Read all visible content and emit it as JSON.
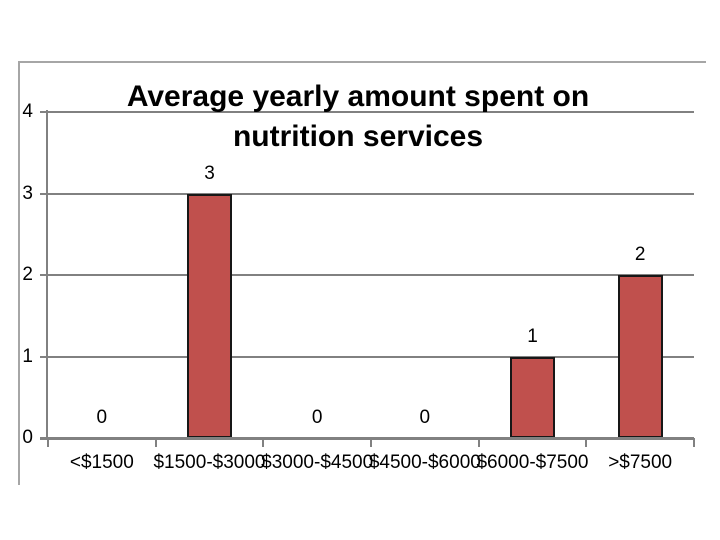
{
  "slide": {
    "title_line1": "Average yearly amount spent on",
    "title_line2": "nutrition services"
  },
  "chart_data": {
    "type": "bar",
    "title": "Average yearly amount spent on nutrition services",
    "title_lines": [
      "Average yearly amount spent on",
      "nutrition services"
    ],
    "categories": [
      "<$1500",
      "$1500-$3000",
      "$3000-$4500",
      "$4500-$6000",
      "$6000-$7500",
      ">$7500"
    ],
    "values": [
      0,
      3,
      0,
      0,
      1,
      2
    ],
    "data_labels": [
      "0",
      "3",
      "0",
      "0",
      "1",
      "2"
    ],
    "xlabel": "",
    "ylabel": "",
    "ylim": [
      0,
      4
    ],
    "yticks": [
      "0",
      "1",
      "2",
      "3",
      "4"
    ],
    "grid": true,
    "legend_position": "none",
    "colors": {
      "bar_fill": "#C0504D",
      "bar_border": "#171717",
      "gridline": "#818181",
      "axis": "#818181",
      "frame": "#A6A6A6",
      "background": "#FFFFFF",
      "title_text": "#000000"
    }
  }
}
